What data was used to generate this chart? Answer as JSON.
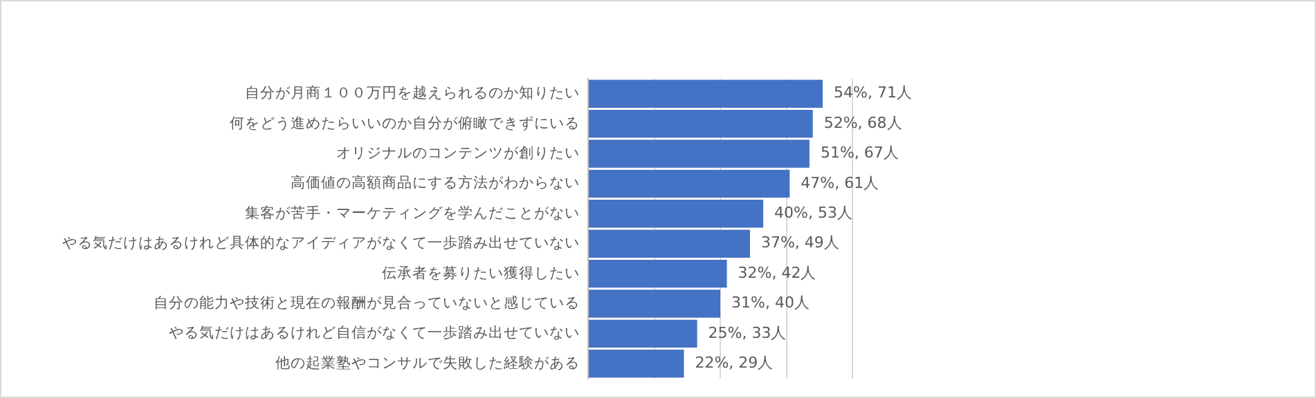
{
  "chart_data": {
    "type": "bar",
    "orientation": "horizontal",
    "categories": [
      "自分が月商１００万円を越えられるのか知りたい",
      "何をどう進めたらいいのか自分が俯瞰できずにいる",
      "オリジナルのコンテンツが創りたい",
      "高価値の高額商品にする方法がわからない",
      "集客が苦手・マーケティングを学んだことがない",
      "やる気だけはあるけれど具体的なアイディアがなくて一歩踏み出せていない",
      "伝承者を募りたい獲得したい",
      "自分の能力や技術と現在の報酬が見合っていないと感じている",
      "やる気だけはあるけれど自信がなくて一歩踏み出せていない",
      "他の起業塾やコンサルで失敗した経験がある"
    ],
    "values": [
      71,
      68,
      67,
      61,
      53,
      49,
      42,
      40,
      33,
      29
    ],
    "value_labels": [
      "54%, 71人",
      "52%, 68人",
      "51%, 67人",
      "47%, 61人",
      "40%, 53人",
      "37%, 49人",
      "32%, 42人",
      "31%, 40人",
      "25%, 33人",
      "22%, 29人"
    ],
    "color": "#4472c4",
    "xlim": [
      0,
      80
    ],
    "xticks": [
      {
        "value": 0,
        "label": null
      },
      {
        "value": 20,
        "label": null
      },
      {
        "value": 40,
        "label": null
      },
      {
        "value": 60,
        "label": null
      },
      {
        "value": 80,
        "label": null
      }
    ],
    "grid": "x",
    "tick_labels": "y",
    "legend": false
  }
}
